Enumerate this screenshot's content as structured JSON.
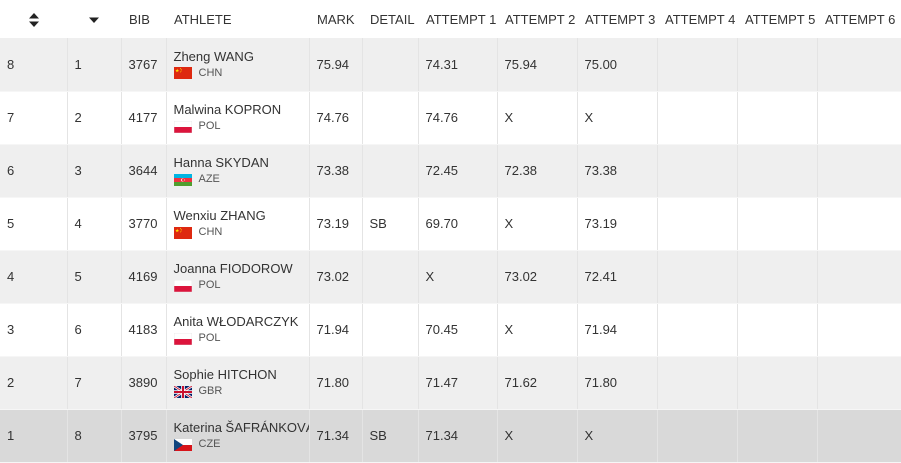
{
  "table": {
    "headers": {
      "bib": "BIB",
      "athlete": "ATHLETE",
      "mark": "MARK",
      "detail": "DETAIL",
      "attempt1": "ATTEMPT 1",
      "attempt2": "ATTEMPT 2",
      "attempt3": "ATTEMPT 3",
      "attempt4": "ATTEMPT 4",
      "attempt5": "ATTEMPT 5",
      "attempt6": "ATTEMPT 6"
    },
    "sort_icons": [
      "sort-updown-icon",
      "sort-down-icon"
    ],
    "rows": [
      {
        "order": "8",
        "place": "1",
        "bib": "3767",
        "name": "Zheng WANG",
        "country": "CHN",
        "flag": "chn",
        "mark": "75.94",
        "detail": "",
        "a1": "74.31",
        "a2": "75.94",
        "a3": "75.00",
        "a4": "",
        "a5": "",
        "a6": ""
      },
      {
        "order": "7",
        "place": "2",
        "bib": "4177",
        "name": "Malwina KOPRON",
        "country": "POL",
        "flag": "pol",
        "mark": "74.76",
        "detail": "",
        "a1": "74.76",
        "a2": "X",
        "a3": "X",
        "a4": "",
        "a5": "",
        "a6": ""
      },
      {
        "order": "6",
        "place": "3",
        "bib": "3644",
        "name": "Hanna SKYDAN",
        "country": "AZE",
        "flag": "aze",
        "mark": "73.38",
        "detail": "",
        "a1": "72.45",
        "a2": "72.38",
        "a3": "73.38",
        "a4": "",
        "a5": "",
        "a6": ""
      },
      {
        "order": "5",
        "place": "4",
        "bib": "3770",
        "name": "Wenxiu ZHANG",
        "country": "CHN",
        "flag": "chn",
        "mark": "73.19",
        "detail": "SB",
        "a1": "69.70",
        "a2": "X",
        "a3": "73.19",
        "a4": "",
        "a5": "",
        "a6": ""
      },
      {
        "order": "4",
        "place": "5",
        "bib": "4169",
        "name": "Joanna FIODOROW",
        "country": "POL",
        "flag": "pol",
        "mark": "73.02",
        "detail": "",
        "a1": "X",
        "a2": "73.02",
        "a3": "72.41",
        "a4": "",
        "a5": "",
        "a6": ""
      },
      {
        "order": "3",
        "place": "6",
        "bib": "4183",
        "name": "Anita WŁODARCZYK",
        "country": "POL",
        "flag": "pol",
        "mark": "71.94",
        "detail": "",
        "a1": "70.45",
        "a2": "X",
        "a3": "71.94",
        "a4": "",
        "a5": "",
        "a6": ""
      },
      {
        "order": "2",
        "place": "7",
        "bib": "3890",
        "name": "Sophie HITCHON",
        "country": "GBR",
        "flag": "gbr",
        "mark": "71.80",
        "detail": "",
        "a1": "71.47",
        "a2": "71.62",
        "a3": "71.80",
        "a4": "",
        "a5": "",
        "a6": ""
      },
      {
        "order": "1",
        "place": "8",
        "bib": "3795",
        "name": "Katerina ŠAFRÁNKOVÁ",
        "country": "CZE",
        "flag": "cze",
        "mark": "71.34",
        "detail": "SB",
        "a1": "71.34",
        "a2": "X",
        "a3": "X",
        "a4": "",
        "a5": "",
        "a6": ""
      }
    ],
    "highlighted_row_index": 7
  },
  "colors": {
    "row_odd": "#efefef",
    "row_even": "#ffffff",
    "row_highlight": "#d9d9d9",
    "text": "#333333"
  }
}
